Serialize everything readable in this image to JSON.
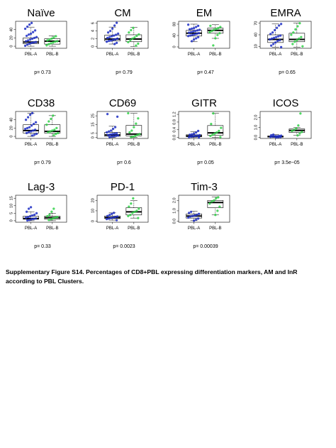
{
  "chart_data": [
    {
      "type": "box",
      "title": "Naïve",
      "categories": [
        "PBL-A",
        "PBL-B"
      ],
      "yticks": [
        "0",
        "20",
        "40"
      ],
      "ylim": [
        -5,
        60
      ],
      "p_value": "p= 0.73",
      "series": [
        {
          "values": [
            1,
            4,
            6,
            8,
            9,
            10,
            12,
            14,
            16,
            18,
            20,
            22,
            25,
            28,
            30,
            34,
            38,
            42,
            47,
            52,
            56
          ]
        },
        {
          "values": [
            2,
            5,
            7,
            9,
            11,
            12,
            14,
            16,
            18,
            21,
            24
          ]
        }
      ],
      "boxes": [
        {
          "whisker_low": 0,
          "q1": 6,
          "median": 10,
          "q3": 20,
          "whisker_high": 46
        },
        {
          "whisker_low": 0,
          "q1": 5,
          "median": 12,
          "q3": 18,
          "whisker_high": 25
        }
      ]
    },
    {
      "type": "box",
      "title": "CM",
      "categories": [
        "PBL-A",
        "PBL-B"
      ],
      "yticks": [
        "0",
        "2",
        "4",
        "6"
      ],
      "ylim": [
        -0.5,
        6.5
      ],
      "p_value": "p= 0.79",
      "series": [
        {
          "values": [
            0.6,
            0.9,
            1.2,
            1.4,
            1.5,
            1.7,
            1.8,
            2.0,
            2.2,
            2.4,
            2.6,
            2.8,
            3.0,
            3.3,
            3.6,
            4.0,
            4.6,
            5.4,
            6.1
          ]
        },
        {
          "values": [
            0.2,
            0.7,
            1.1,
            1.6,
            2.0,
            2.3,
            2.7,
            3.1,
            3.6,
            4.2,
            4.8
          ]
        }
      ],
      "boxes": [
        {
          "whisker_low": 0.6,
          "q1": 1.4,
          "median": 1.9,
          "q3": 2.9,
          "whisker_high": 5.0
        },
        {
          "whisker_low": 0,
          "q1": 1.2,
          "median": 1.9,
          "q3": 3.0,
          "whisker_high": 4.9
        }
      ]
    },
    {
      "type": "box",
      "title": "EM",
      "categories": [
        "PBL-A",
        "PBL-B"
      ],
      "yticks": [
        "0",
        "40",
        "80"
      ],
      "ylim": [
        -5,
        90
      ],
      "p_value": "p= 0.47",
      "series": [
        {
          "values": [
            20,
            26,
            30,
            34,
            38,
            40,
            42,
            44,
            46,
            48,
            50,
            52,
            54,
            56,
            58,
            60,
            62,
            64,
            66,
            70,
            74,
            78
          ]
        },
        {
          "values": [
            5,
            30,
            42,
            48,
            52,
            56,
            60,
            63,
            66,
            70,
            74
          ]
        }
      ],
      "boxes": [
        {
          "whisker_low": 18,
          "q1": 38,
          "median": 48,
          "q3": 58,
          "whisker_high": 80
        },
        {
          "whisker_low": 30,
          "q1": 48,
          "median": 58,
          "q3": 66,
          "whisker_high": 78
        }
      ]
    },
    {
      "type": "box",
      "title": "EMRA",
      "categories": [
        "PBL-A",
        "PBL-B"
      ],
      "yticks": [
        "10",
        "40",
        "70"
      ],
      "ylim": [
        5,
        75
      ],
      "p_value": "p= 0.65",
      "series": [
        {
          "values": [
            8,
            12,
            16,
            20,
            24,
            26,
            28,
            30,
            32,
            34,
            36,
            38,
            42,
            46,
            52,
            58,
            64,
            68
          ]
        },
        {
          "values": [
            10,
            16,
            22,
            26,
            30,
            34,
            40,
            46,
            54,
            62,
            70
          ]
        }
      ],
      "boxes": [
        {
          "whisker_low": 8,
          "q1": 20,
          "median": 28,
          "q3": 40,
          "whisker_high": 68
        },
        {
          "whisker_low": 8,
          "q1": 22,
          "median": 28,
          "q3": 44,
          "whisker_high": 70
        }
      ]
    },
    {
      "type": "box",
      "title": "CD38",
      "categories": [
        "PBL-A",
        "PBL-B"
      ],
      "yticks": [
        "0",
        "20",
        "40"
      ],
      "ylim": [
        -5,
        60
      ],
      "p_value": "p= 0.79",
      "series": [
        {
          "values": [
            2,
            4,
            6,
            8,
            10,
            12,
            14,
            16,
            18,
            20,
            22,
            26,
            30,
            34,
            40,
            46,
            52,
            56
          ]
        },
        {
          "values": [
            3,
            6,
            8,
            10,
            12,
            14,
            16,
            20,
            28,
            36,
            42,
            50
          ]
        }
      ],
      "boxes": [
        {
          "whisker_low": 0,
          "q1": 8,
          "median": 14,
          "q3": 28,
          "whisker_high": 56
        },
        {
          "whisker_low": 0,
          "q1": 8,
          "median": 12,
          "q3": 28,
          "whisker_high": 50
        }
      ]
    },
    {
      "type": "box",
      "title": "CD69",
      "categories": [
        "PBL-A",
        "PBL-B"
      ],
      "yticks": [
        "0",
        "5",
        "15",
        "25"
      ],
      "ylim": [
        -1,
        30
      ],
      "p_value": "p= 0.6",
      "series": [
        {
          "values": [
            0.5,
            1,
            1.5,
            2,
            2.5,
            3,
            3.5,
            4,
            4.5,
            5,
            6,
            7,
            8,
            10,
            12,
            24,
            27
          ]
        },
        {
          "values": [
            0.5,
            1,
            2,
            3,
            4,
            6,
            8,
            12,
            16,
            22,
            28
          ]
        }
      ],
      "boxes": [
        {
          "whisker_low": 0,
          "q1": 1.5,
          "median": 3,
          "q3": 6,
          "whisker_high": 13
        },
        {
          "whisker_low": 0,
          "q1": 2,
          "median": 4,
          "q3": 14,
          "whisker_high": 28
        }
      ]
    },
    {
      "type": "box",
      "title": "GITR",
      "categories": [
        "PBL-A",
        "PBL-B"
      ],
      "yticks": [
        "0.0",
        "0.4",
        "0.8",
        "1.2"
      ],
      "ylim": [
        -0.05,
        1.35
      ],
      "p_value": "p= 0.05",
      "series": [
        {
          "values": [
            0.0,
            0.02,
            0.04,
            0.06,
            0.08,
            0.1,
            0.12,
            0.14,
            0.16,
            0.2,
            0.26,
            0.34
          ]
        },
        {
          "values": [
            0.02,
            0.08,
            0.14,
            0.2,
            0.26,
            0.34,
            0.5,
            0.7,
            1.25
          ]
        }
      ],
      "boxes": [
        {
          "whisker_low": 0,
          "q1": 0.04,
          "median": 0.08,
          "q3": 0.14,
          "whisker_high": 0.3
        },
        {
          "whisker_low": 0,
          "q1": 0.12,
          "median": 0.24,
          "q3": 0.62,
          "whisker_high": 1.25
        }
      ]
    },
    {
      "type": "box",
      "title": "ICOS",
      "categories": [
        "PBL-A",
        "PBL-B"
      ],
      "yticks": [
        "0.0",
        "1.0",
        "2.0"
      ],
      "ylim": [
        -0.1,
        2.6
      ],
      "p_value": "p= 3.5e−05",
      "series": [
        {
          "values": [
            0.0,
            0.02,
            0.04,
            0.06,
            0.08,
            0.1,
            0.12,
            0.15,
            0.18,
            0.22,
            0.28
          ]
        },
        {
          "values": [
            0.2,
            0.4,
            0.55,
            0.65,
            0.75,
            0.9,
            1.2,
            2.4
          ]
        }
      ],
      "boxes": [
        {
          "whisker_low": 0,
          "q1": 0.03,
          "median": 0.08,
          "q3": 0.15,
          "whisker_high": 0.3
        },
        {
          "whisker_low": 0.2,
          "q1": 0.5,
          "median": 0.7,
          "q3": 0.85,
          "whisker_high": 1.0
        }
      ]
    },
    {
      "type": "box",
      "title": "Lag-3",
      "categories": [
        "PBL-A",
        "PBL-B"
      ],
      "yticks": [
        "0",
        "5",
        "10",
        "15"
      ],
      "ylim": [
        -1,
        17
      ],
      "p_value": "p= 0.33",
      "series": [
        {
          "values": [
            0.2,
            0.5,
            1,
            1.2,
            1.5,
            2,
            2.5,
            3,
            3.5,
            4,
            5,
            6,
            8,
            9
          ]
        },
        {
          "values": [
            0.5,
            1,
            1.5,
            2,
            2.5,
            3,
            4,
            6,
            8
          ]
        }
      ],
      "boxes": [
        {
          "whisker_low": 0,
          "q1": 1,
          "median": 1.5,
          "q3": 3,
          "whisker_high": 6
        },
        {
          "whisker_low": 0,
          "q1": 1,
          "median": 2,
          "q3": 3,
          "whisker_high": 5
        }
      ]
    },
    {
      "type": "box",
      "title": "PD-1",
      "categories": [
        "PBL-A",
        "PBL-B"
      ],
      "yticks": [
        "0",
        "10",
        "20"
      ],
      "ylim": [
        -1,
        25
      ],
      "p_value": "p= 0.0023",
      "series": [
        {
          "values": [
            1,
            2,
            2.5,
            3,
            3.5,
            4,
            4.5,
            5,
            6,
            7,
            8
          ]
        },
        {
          "values": [
            3,
            5,
            6,
            8,
            9,
            10,
            12,
            14,
            17,
            22
          ]
        }
      ],
      "boxes": [
        {
          "whisker_low": 1,
          "q1": 2.5,
          "median": 3.5,
          "q3": 5,
          "whisker_high": 8
        },
        {
          "whisker_low": 3,
          "q1": 6,
          "median": 9,
          "q3": 13,
          "whisker_high": 20
        }
      ]
    },
    {
      "type": "box",
      "title": "Tim-3",
      "categories": [
        "PBL-A",
        "PBL-B"
      ],
      "yticks": [
        "0.0",
        "1.0",
        "2.0"
      ],
      "ylim": [
        -0.1,
        2.5
      ],
      "p_value": "p= 0.00039",
      "series": [
        {
          "values": [
            0.05,
            0.15,
            0.25,
            0.35,
            0.45,
            0.5,
            0.55,
            0.6,
            0.7,
            0.8,
            0.9
          ]
        },
        {
          "values": [
            0.6,
            1.0,
            1.4,
            1.7,
            1.9,
            2.0,
            2.2,
            2.3
          ]
        }
      ],
      "boxes": [
        {
          "whisker_low": 0.05,
          "q1": 0.3,
          "median": 0.5,
          "q3": 0.7,
          "whisker_high": 0.95
        },
        {
          "whisker_low": 0.6,
          "q1": 1.3,
          "median": 1.8,
          "q3": 2.0,
          "whisker_high": 2.35
        }
      ]
    }
  ],
  "caption": "Supplementary  Figure S14. Percentages of CD8+PBL expressing differentiation markers, AM and InR according to PBL Clusters.",
  "colors": {
    "pbl_a": "#1f2fc4",
    "pbl_b": "#33d14a",
    "box": "#000000"
  }
}
